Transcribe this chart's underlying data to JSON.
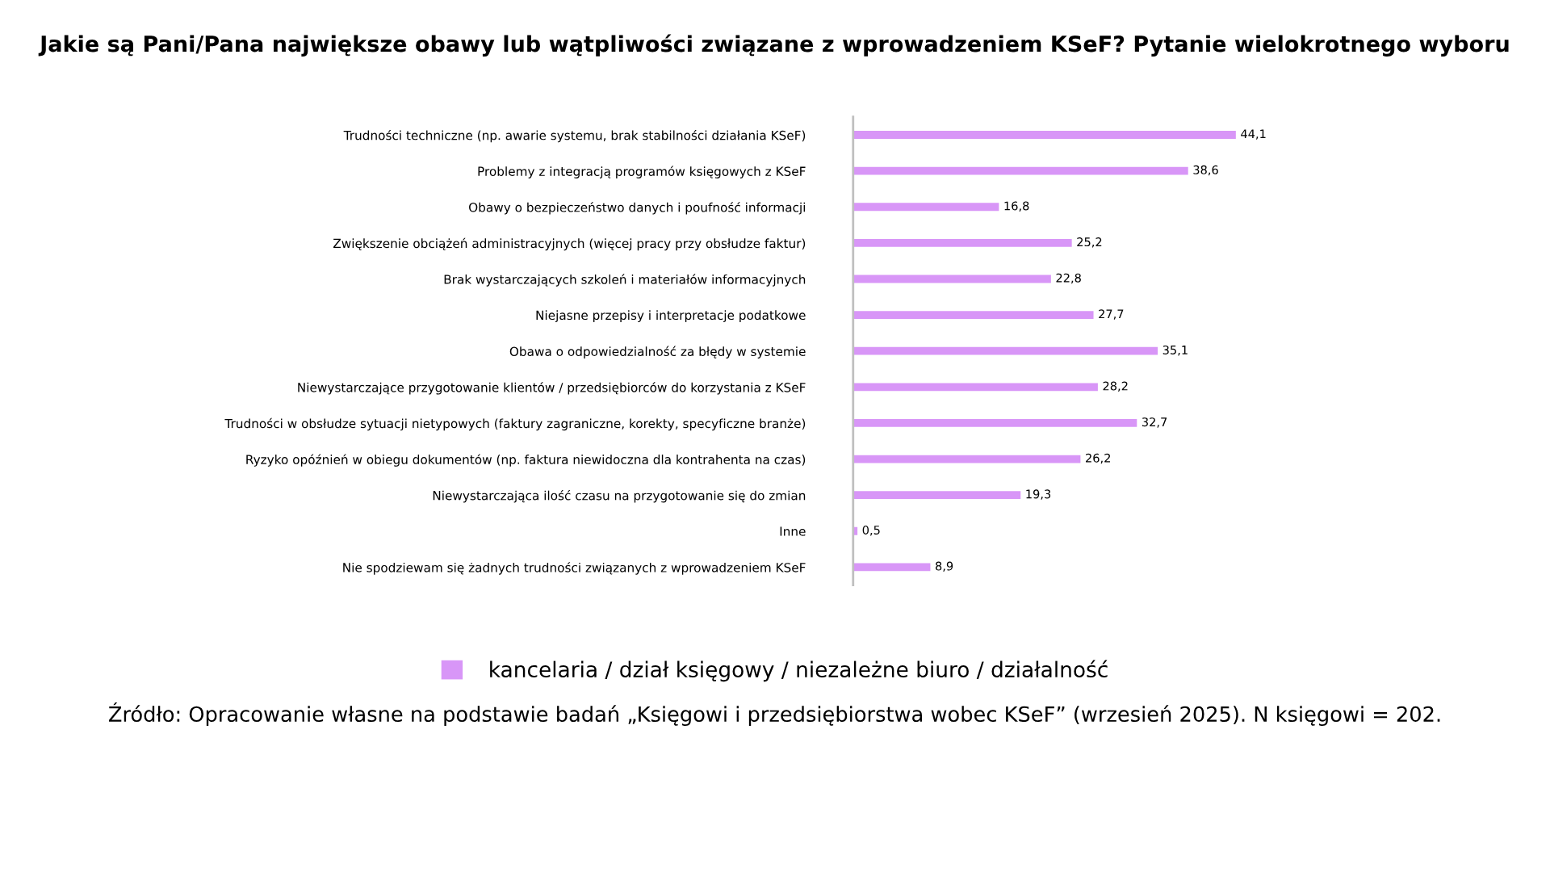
{
  "chart_data": {
    "type": "bar",
    "orientation": "horizontal",
    "title": "Jakie są Pani/Pana największe obawy lub wątpliwości związane z wprowadzeniem KSeF? Pytanie wielokrotnego wyboru",
    "categories": [
      "Trudności techniczne (np. awarie systemu, brak stabilności działania KSeF)",
      "Problemy z integracją programów księgowych z KSeF",
      "Obawy o bezpieczeństwo danych i poufność informacji",
      "Zwiększenie obciążeń administracyjnych (więcej pracy przy obsłudze faktur)",
      "Brak wystarczających szkoleń i materiałów informacyjnych",
      "Niejasne przepisy i interpretacje podatkowe",
      "Obawa o odpowiedzialność za błędy w systemie",
      "Niewystarczające przygotowanie klientów / przedsiębiorców do korzystania z KSeF",
      "Trudności w obsłudze sytuacji nietypowych (faktury zagraniczne, korekty, specyficzne branże)",
      "Ryzyko opóźnień w obiegu dokumentów (np. faktura niewidoczna dla kontrahenta na czas)",
      "Niewystarczająca ilość czasu na przygotowanie się do zmian",
      "Inne",
      "Nie spodziewam się żadnych trudności związanych z wprowadzeniem KSeF"
    ],
    "series": [
      {
        "name": "kancelaria / dział księgowy / niezależne biuro / działalność",
        "color": "#d896f7",
        "values": [
          44.1,
          38.6,
          16.8,
          25.2,
          22.8,
          27.7,
          35.1,
          28.2,
          32.7,
          26.2,
          19.3,
          0.5,
          8.9
        ],
        "value_labels": [
          "44,1",
          "38,6",
          "16,8",
          "25,2",
          "22,8",
          "27,7",
          "35,1",
          "28,2",
          "32,7",
          "26,2",
          "19,3",
          "0,5",
          "8,9"
        ]
      }
    ],
    "legend": "bottom",
    "grid": false,
    "annotations": [
      "Źródło: Opracowanie własne na podstawie badań „Księgowi i przedsiębiorstwa wobec KSeF” (wrzesień 2025). N księgowi = 202."
    ]
  }
}
